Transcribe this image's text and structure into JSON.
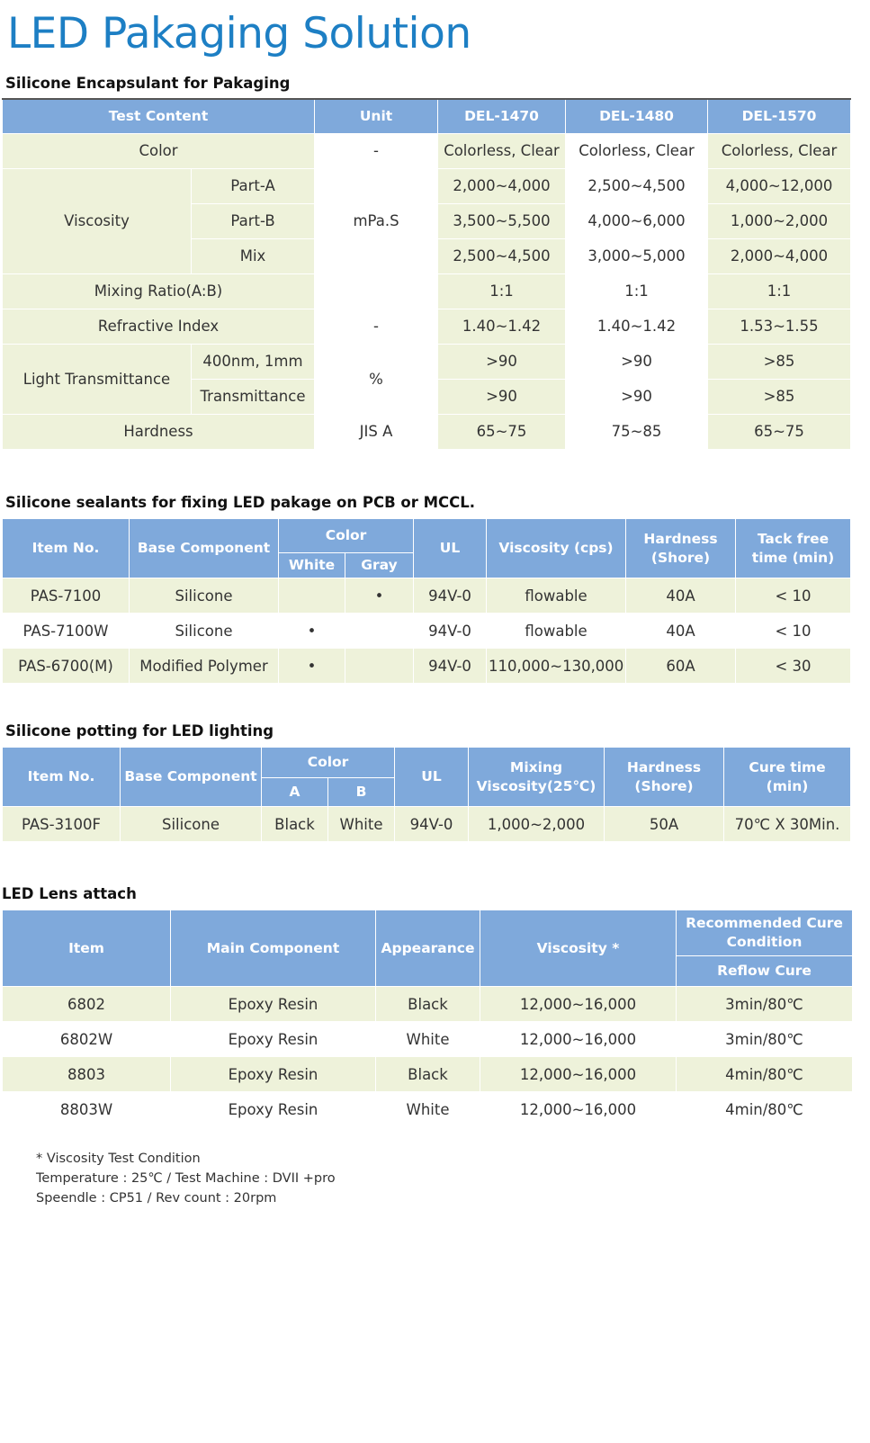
{
  "title": "LED Pakaging Solution",
  "t1": {
    "heading": "Silicone Encapsulant for Pakaging",
    "head": [
      "Test Content",
      "Unit",
      "DEL-1470",
      "DEL-1480",
      "DEL-1570"
    ],
    "color": {
      "label": "Color",
      "unit": "-",
      "v": [
        "Colorless, Clear",
        "Colorless, Clear",
        "Colorless, Clear"
      ]
    },
    "viscosity": {
      "label": "Viscosity",
      "unit": "mPa.S",
      "rows": [
        {
          "sub": "Part-A",
          "v": [
            "2,000~4,000",
            "2,500~4,500",
            "4,000~12,000"
          ]
        },
        {
          "sub": "Part-B",
          "v": [
            "3,500~5,500",
            "4,000~6,000",
            "1,000~2,000"
          ]
        },
        {
          "sub": "Mix",
          "v": [
            "2,500~4,500",
            "3,000~5,000",
            "2,000~4,000"
          ]
        }
      ]
    },
    "mixing": {
      "label": "Mixing Ratio(A:B)",
      "v": [
        "1:1",
        "1:1",
        "1:1"
      ]
    },
    "refractive": {
      "label": "Refractive Index",
      "unit": "-",
      "v": [
        "1.40~1.42",
        "1.40~1.42",
        "1.53~1.55"
      ]
    },
    "light": {
      "label": "Light Transmittance",
      "unit": "%",
      "rows": [
        {
          "sub": "400nm, 1mm",
          "v": [
            ">90",
            ">90",
            ">85"
          ]
        },
        {
          "sub": "Transmittance",
          "v": [
            ">90",
            ">90",
            ">85"
          ]
        }
      ]
    },
    "hardness": {
      "label": "Hardness",
      "unit": "JIS A",
      "v": [
        "65~75",
        "75~85",
        "65~75"
      ]
    }
  },
  "t2": {
    "heading": "Silicone sealants for fixing LED pakage on PCB or MCCL.",
    "head": {
      "item": "Item No.",
      "base": "Base Component",
      "color": "Color",
      "white": "White",
      "gray": "Gray",
      "ul": "UL",
      "visc": "Viscosity (cps)",
      "hard": "Hardness (Shore)",
      "tack": "Tack free time (min)"
    },
    "rows": [
      {
        "item": "PAS-7100",
        "base": "Silicone",
        "white": "",
        "gray": "•",
        "ul": "94V-0",
        "visc": "flowable",
        "hard": "40A",
        "tack": "< 10"
      },
      {
        "item": "PAS-7100W",
        "base": "Silicone",
        "white": "•",
        "gray": "",
        "ul": "94V-0",
        "visc": "flowable",
        "hard": "40A",
        "tack": "< 10"
      },
      {
        "item": "PAS-6700(M)",
        "base": "Modified Polymer",
        "white": "•",
        "gray": "",
        "ul": "94V-0",
        "visc": "110,000~130,000",
        "hard": "60A",
        "tack": "< 30"
      }
    ]
  },
  "t3": {
    "heading": "Silicone potting for LED lighting",
    "head": {
      "item": "Item No.",
      "base": "Base Component",
      "color": "Color",
      "a": "A",
      "b": "B",
      "ul": "UL",
      "mix": "Mixing Viscosity(25℃)",
      "hard": "Hardness (Shore)",
      "cure": "Cure time (min)"
    },
    "row": {
      "item": "PAS-3100F",
      "base": "Silicone",
      "a": "Black",
      "b": "White",
      "ul": "94V-0",
      "mix": "1,000~2,000",
      "hard": "50A",
      "cure": "70℃ X 30Min."
    }
  },
  "t4": {
    "heading": "LED Lens attach",
    "head": {
      "item": "Item",
      "main": "Main Component",
      "app": "Appearance",
      "visc": "Viscosity *",
      "rec": "Recommended Cure Condition",
      "reflow": "Reflow Cure"
    },
    "rows": [
      {
        "item": "6802",
        "main": "Epoxy Resin",
        "app": "Black",
        "visc": "12,000~16,000",
        "cure": "3min/80℃"
      },
      {
        "item": "6802W",
        "main": "Epoxy Resin",
        "app": "White",
        "visc": "12,000~16,000",
        "cure": "3min/80℃"
      },
      {
        "item": "8803",
        "main": "Epoxy Resin",
        "app": "Black",
        "visc": "12,000~16,000",
        "cure": "4min/80℃"
      },
      {
        "item": "8803W",
        "main": "Epoxy Resin",
        "app": "White",
        "visc": "12,000~16,000",
        "cure": "4min/80℃"
      }
    ]
  },
  "notes": [
    "* Viscosity Test Condition",
    "Temperature  : 25℃  /  Test Machine  : DVII +pro",
    "Speendle : CP51 / Rev count : 20rpm"
  ],
  "colors": {
    "title": "#1d7fc4",
    "header": "#7fa9db",
    "stripe": "#eef2da"
  }
}
